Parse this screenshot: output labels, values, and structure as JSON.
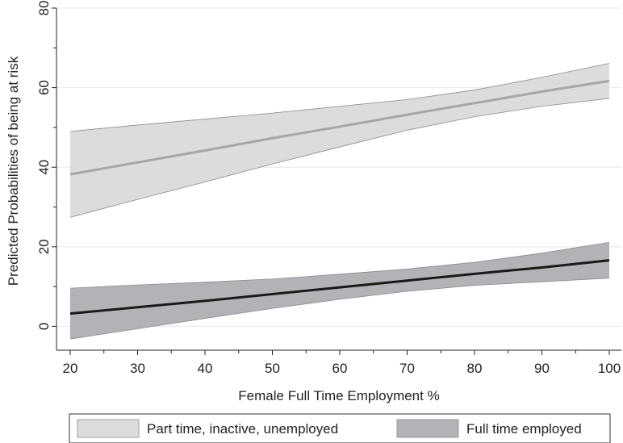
{
  "chart_data": {
    "type": "line",
    "xlabel": "Female Full Time Employment %",
    "ylabel": "Predicted Probabilities of being at risk",
    "xlim": [
      20,
      100
    ],
    "ylim": [
      -6,
      80
    ],
    "xticks": [
      20,
      30,
      40,
      50,
      60,
      70,
      80,
      90,
      100
    ],
    "yticks": [
      0,
      20,
      40,
      60,
      80
    ],
    "grid": "horizontal",
    "legend_position": "bottom",
    "x": [
      20,
      30,
      40,
      50,
      60,
      70,
      80,
      90,
      100
    ],
    "series": [
      {
        "name": "Part time, inactive, unemployed",
        "color": "#a6a6a6",
        "band_color": "#dcdcdc",
        "values": [
          38.2,
          41.2,
          44.2,
          47.3,
          50.2,
          53.2,
          56.1,
          59.0,
          61.7
        ],
        "lower": [
          27.4,
          31.9,
          36.3,
          40.8,
          45.1,
          49.3,
          52.7,
          55.3,
          57.3
        ],
        "upper": [
          49.0,
          50.6,
          52.1,
          53.6,
          55.3,
          57.0,
          59.4,
          62.6,
          66.1
        ]
      },
      {
        "name": "Full time employed",
        "color": "#1a1a1a",
        "band_color": "#b3b3b7",
        "values": [
          3.2,
          4.8,
          6.4,
          8.1,
          9.8,
          11.5,
          13.2,
          14.8,
          16.6
        ],
        "lower": [
          -3.2,
          -0.6,
          2.0,
          4.5,
          6.8,
          8.8,
          10.3,
          11.2,
          12.1
        ],
        "upper": [
          9.6,
          10.4,
          11.1,
          11.9,
          13.1,
          14.4,
          16.1,
          18.4,
          21.1
        ]
      }
    ]
  }
}
